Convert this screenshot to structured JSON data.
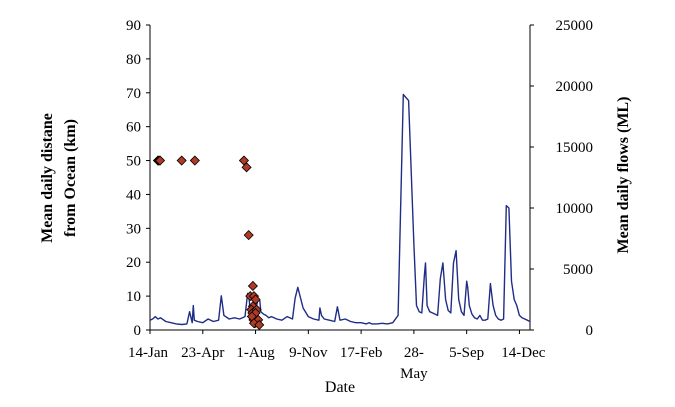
{
  "chart_data": {
    "type": "line+scatter",
    "xlabel": "Date",
    "ylabel_left": [
      "Mean daily distane",
      "from Ocean (km)"
    ],
    "ylabel_right": "Mean daily flows (ML)",
    "x_ticks": [
      "14-Jan",
      "23-Apr",
      "1-Aug",
      "9-Nov",
      "17-Feb",
      "28-May",
      "5-Sep",
      "14-Dec"
    ],
    "x_tick_index": [
      0,
      1,
      2,
      3,
      4,
      5,
      6,
      7
    ],
    "y_left_ticks": [
      "0",
      "10",
      "20",
      "30",
      "40",
      "50",
      "60",
      "70",
      "80",
      "90"
    ],
    "y_left_range": [
      0,
      90
    ],
    "y_right_ticks": [
      "0",
      "5000",
      "10000",
      "15000",
      "20000",
      "25000"
    ],
    "y_right_range": [
      0,
      25000
    ],
    "grid": false,
    "legend": "none",
    "colors": {
      "flow_line": "#1f2d86",
      "marker_fill": "#b03a24",
      "marker_edge": "#000000"
    },
    "series": [
      {
        "kind": "line",
        "axis": "right",
        "x": [
          0,
          0.05,
          0.1,
          0.15,
          0.2,
          0.3,
          0.4,
          0.5,
          0.6,
          0.7,
          0.75,
          0.8,
          0.82,
          0.84,
          0.9,
          1.0,
          1.1,
          1.2,
          1.3,
          1.35,
          1.4,
          1.5,
          1.6,
          1.7,
          1.8,
          1.85,
          1.88,
          1.9,
          1.95,
          2.0,
          2.05,
          2.08,
          2.1,
          2.15,
          2.2,
          2.25,
          2.3,
          2.35,
          2.4,
          2.5,
          2.6,
          2.7,
          2.75,
          2.8,
          2.9,
          3.0,
          3.1,
          3.2,
          3.22,
          3.25,
          3.3,
          3.4,
          3.5,
          3.55,
          3.6,
          3.7,
          3.8,
          3.9,
          4.0,
          4.1,
          4.15,
          4.2,
          4.3,
          4.4,
          4.5,
          4.6,
          4.7,
          4.8,
          4.9,
          5.0,
          5.05,
          5.1,
          5.15,
          5.2,
          5.22,
          5.25,
          5.3,
          5.35,
          5.4,
          5.45,
          5.5,
          5.55,
          5.6,
          5.65,
          5.7,
          5.75,
          5.8,
          5.85,
          5.9,
          5.95,
          6.0,
          6.02,
          6.05,
          6.1,
          6.15,
          6.2,
          6.25,
          6.3,
          6.35,
          6.4,
          6.45,
          6.5,
          6.55,
          6.6,
          6.65,
          6.7,
          6.75,
          6.8,
          6.85,
          6.9,
          6.95,
          7.0,
          7.05,
          7.1,
          7.15,
          7.2
        ],
        "values": [
          800,
          900,
          1100,
          900,
          1000,
          700,
          600,
          500,
          450,
          500,
          1500,
          600,
          2000,
          800,
          700,
          600,
          900,
          700,
          800,
          2800,
          1200,
          900,
          1000,
          900,
          1100,
          3000,
          2500,
          1400,
          1200,
          1600,
          2600,
          2400,
          1500,
          1300,
          1200,
          1000,
          1100,
          1000,
          900,
          800,
          1100,
          900,
          2600,
          3500,
          1800,
          1100,
          900,
          800,
          1800,
          1200,
          900,
          800,
          700,
          1900,
          800,
          900,
          700,
          600,
          600,
          500,
          600,
          500,
          500,
          550,
          500,
          600,
          1200,
          19300,
          18800,
          7000,
          2000,
          1500,
          1400,
          4500,
          5500,
          2000,
          1500,
          1400,
          1300,
          1200,
          4200,
          5500,
          2500,
          1600,
          1400,
          5500,
          6500,
          2500,
          1500,
          1200,
          4000,
          3500,
          2000,
          1300,
          1000,
          900,
          1200,
          800,
          800,
          900,
          3800,
          2000,
          1200,
          900,
          800,
          900,
          10200,
          10000,
          4000,
          2500,
          2000,
          1200,
          1000,
          900,
          800,
          700
        ]
      },
      {
        "kind": "scatter",
        "axis": "left",
        "x": [
          0.15,
          0.17,
          0.19,
          0.6,
          0.85,
          1.78,
          1.83,
          1.87,
          1.9,
          1.95,
          1.97,
          1.95,
          2.0,
          1.92,
          1.94,
          1.98,
          2.02,
          1.96,
          1.99,
          2.05,
          2.0,
          1.93,
          1.97,
          2.07
        ],
        "values": [
          50,
          50,
          50,
          50,
          50,
          50,
          48,
          28,
          10,
          13,
          10,
          7,
          9,
          6,
          5,
          4,
          6,
          3,
          2,
          3,
          5,
          4,
          2,
          1.5
        ]
      }
    ]
  }
}
